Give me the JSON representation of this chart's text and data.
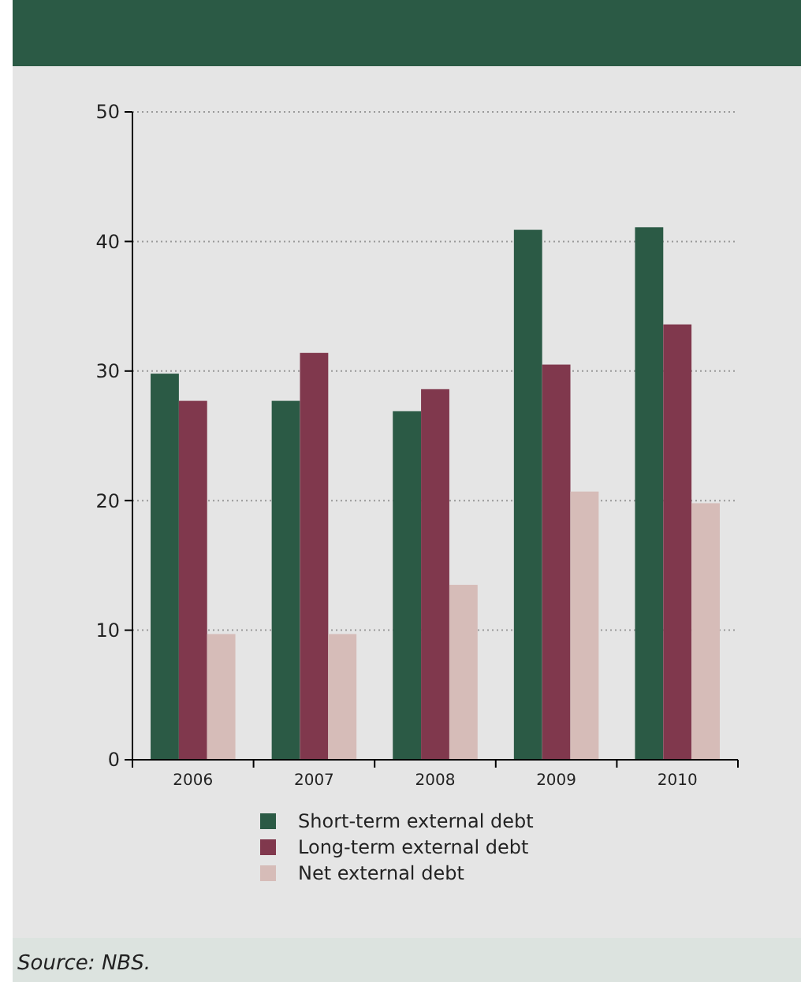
{
  "chart_data": {
    "type": "bar",
    "categories": [
      "2006",
      "2007",
      "2008",
      "2009",
      "2010"
    ],
    "series": [
      {
        "name": "Short-term external debt",
        "color": "#2b5a45",
        "values": [
          29.8,
          27.7,
          26.9,
          40.9,
          41.1
        ]
      },
      {
        "name": "Long-term external debt",
        "color": "#80384d",
        "values": [
          27.7,
          31.4,
          28.6,
          30.5,
          33.6
        ]
      },
      {
        "name": "Net external debt",
        "color": "#d6bcb8",
        "values": [
          9.7,
          9.7,
          13.5,
          20.7,
          19.8
        ]
      }
    ],
    "ylim": [
      0,
      50
    ],
    "yticks": [
      0,
      10,
      20,
      30,
      40,
      50
    ],
    "grid": "y",
    "legend": "bottom",
    "annotations": [
      "Source: NBS."
    ]
  }
}
